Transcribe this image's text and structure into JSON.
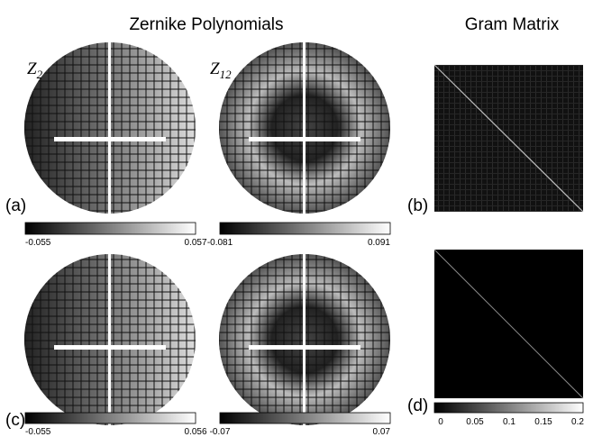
{
  "titles": {
    "left": "Zernike Polynomials",
    "right": "Gram Matrix"
  },
  "panels": {
    "z2": {
      "letter": "Z",
      "subscript": "2"
    },
    "z12": {
      "letter": "Z",
      "subscript": "12"
    },
    "a": "(a)",
    "b": "(b)",
    "c": "(c)",
    "d": "(d)"
  },
  "colorbars": {
    "a_left": [
      "-0.055",
      "0.057"
    ],
    "a_right": [
      "-0.081",
      "0.091"
    ],
    "c_left": [
      "-0.055",
      "0.056"
    ],
    "c_right": [
      "-0.07",
      "0.07"
    ],
    "d": [
      "0",
      "0.05",
      "0.1",
      "0.15",
      "0.2"
    ]
  }
}
